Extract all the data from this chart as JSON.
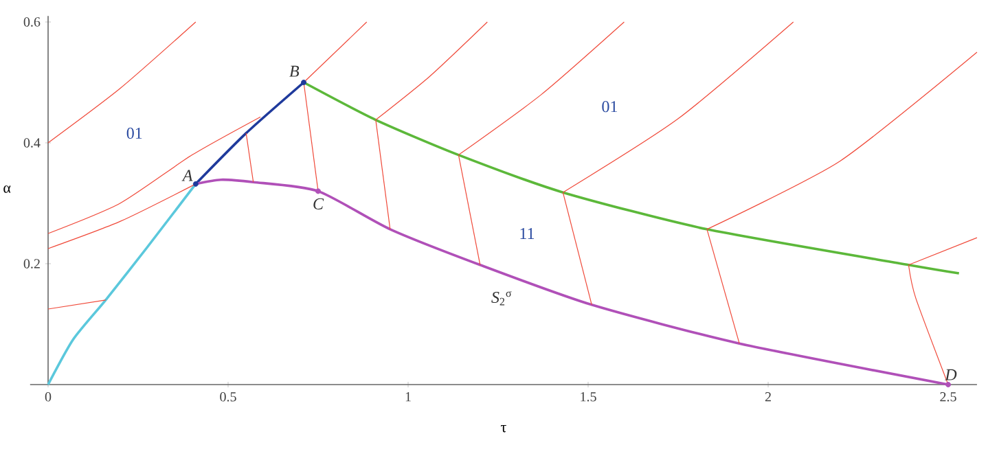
{
  "chart_data": {
    "type": "line",
    "xlabel": "τ",
    "ylabel": "α",
    "xlim": [
      -0.05,
      2.58
    ],
    "ylim": [
      0,
      0.61
    ],
    "xticks": [
      0,
      0.5,
      1,
      1.5,
      2,
      2.5
    ],
    "yticks": [
      0.2,
      0.4,
      0.6
    ],
    "series": [
      {
        "type": "line",
        "color": "#5bc8dc",
        "x": [
          0,
          0.07,
          0.16,
          0.275,
          0.41
        ],
        "values": [
          0,
          0.075,
          0.14,
          0.227,
          0.332
        ]
      },
      {
        "type": "line",
        "color": "#1f3a9c",
        "x": [
          0.41,
          0.55,
          0.71
        ],
        "values": [
          0.332,
          0.416,
          0.5
        ]
      },
      {
        "type": "line",
        "color": "#5cb83a",
        "x": [
          0.71,
          0.91,
          1.14,
          1.43,
          1.83,
          2.39,
          2.53
        ],
        "values": [
          0.5,
          0.438,
          0.38,
          0.318,
          0.257,
          0.198,
          0.184
        ]
      },
      {
        "type": "line",
        "color": "#b050b8",
        "x": [
          0.41,
          0.48,
          0.57,
          0.75,
          0.95,
          1.2,
          1.51,
          1.92,
          2.5
        ],
        "values": [
          0.332,
          0.339,
          0.335,
          0.32,
          0.257,
          0.198,
          0.132,
          0.068,
          0
        ]
      },
      {
        "type": "line",
        "color": "#f04a3a",
        "x": [
          0,
          0.2,
          0.41
        ],
        "values": [
          0.4,
          0.49,
          0.6
        ]
      },
      {
        "type": "line",
        "color": "#f04a3a",
        "x": [
          0,
          0.2,
          0.4,
          0.59
        ],
        "values": [
          0.25,
          0.3,
          0.38,
          0.443
        ]
      },
      {
        "type": "line",
        "color": "#f04a3a",
        "x": [
          0,
          0.2,
          0.41
        ],
        "values": [
          0.225,
          0.27,
          0.332
        ]
      },
      {
        "type": "line",
        "color": "#f04a3a",
        "x": [
          0,
          0.16
        ],
        "values": [
          0.125,
          0.14
        ]
      },
      {
        "type": "line",
        "color": "#f04a3a",
        "x": [
          0.71,
          0.885
        ],
        "values": [
          0.5,
          0.6
        ]
      },
      {
        "type": "line",
        "color": "#f04a3a",
        "x": [
          0.91,
          1.06,
          1.22
        ],
        "values": [
          0.438,
          0.51,
          0.6
        ]
      },
      {
        "type": "line",
        "color": "#f04a3a",
        "x": [
          1.14,
          1.37,
          1.6
        ],
        "values": [
          0.38,
          0.48,
          0.6
        ]
      },
      {
        "type": "line",
        "color": "#f04a3a",
        "x": [
          1.43,
          1.75,
          2.07
        ],
        "values": [
          0.318,
          0.44,
          0.6
        ]
      },
      {
        "type": "line",
        "color": "#f04a3a",
        "x": [
          1.83,
          2.2,
          2.58
        ],
        "values": [
          0.257,
          0.37,
          0.55
        ]
      },
      {
        "type": "line",
        "color": "#f04a3a",
        "x": [
          2.39,
          2.58
        ],
        "values": [
          0.198,
          0.243
        ]
      },
      {
        "type": "line",
        "color": "#f04a3a",
        "x": [
          0.55,
          0.57
        ],
        "values": [
          0.416,
          0.335
        ]
      },
      {
        "type": "line",
        "color": "#f04a3a",
        "x": [
          0.71,
          0.75
        ],
        "values": [
          0.5,
          0.32
        ]
      },
      {
        "type": "line",
        "color": "#f04a3a",
        "x": [
          0.91,
          0.95
        ],
        "values": [
          0.438,
          0.257
        ]
      },
      {
        "type": "line",
        "color": "#f04a3a",
        "x": [
          1.14,
          1.2
        ],
        "values": [
          0.38,
          0.198
        ]
      },
      {
        "type": "line",
        "color": "#f04a3a",
        "x": [
          1.43,
          1.51
        ],
        "values": [
          0.318,
          0.132
        ]
      },
      {
        "type": "line",
        "color": "#f04a3a",
        "x": [
          1.83,
          1.92
        ],
        "values": [
          0.257,
          0.068
        ]
      },
      {
        "type": "line",
        "color": "#f04a3a",
        "x": [
          2.39,
          2.41,
          2.5
        ],
        "values": [
          0.198,
          0.143,
          0
        ]
      },
      {
        "type": "scatter",
        "marker": "circle",
        "x": [
          0.41,
          0.71,
          0.75,
          2.5
        ],
        "values": [
          0.332,
          0.5,
          0.32,
          0
        ],
        "colors": [
          "#1f3a9c",
          "#1f3a9c",
          "#b050b8",
          "#b050b8"
        ]
      }
    ],
    "annotations": [
      {
        "text": "A",
        "x": 0.41,
        "y": 0.332
      },
      {
        "text": "B",
        "x": 0.71,
        "y": 0.5
      },
      {
        "text": "C",
        "x": 0.75,
        "y": 0.32
      },
      {
        "text": "D",
        "x": 2.5,
        "y": 0
      },
      "01",
      "01",
      "11",
      "*S*$_{2}$$^{σ}$"
    ]
  }
}
